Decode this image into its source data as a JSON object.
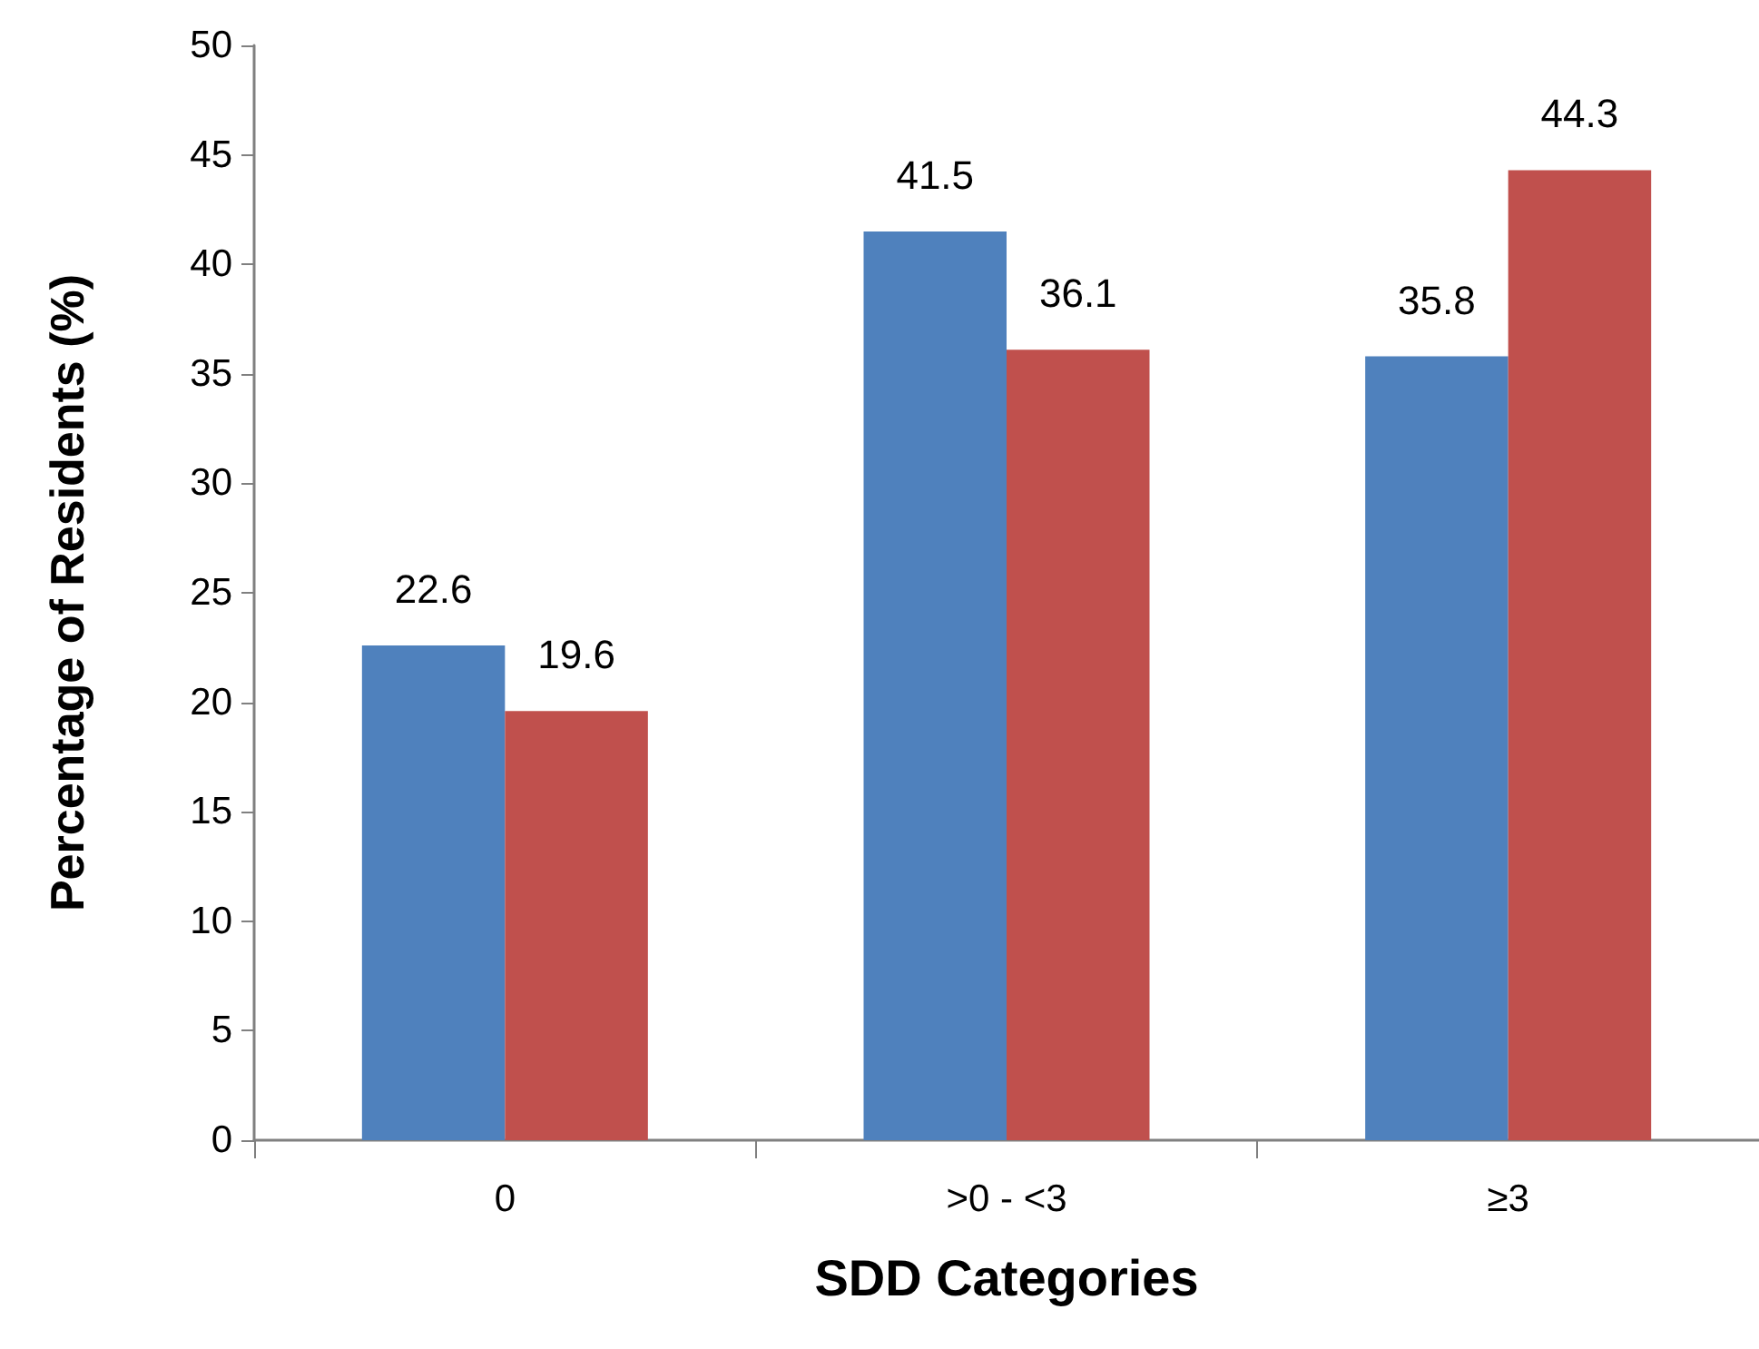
{
  "chart_data": {
    "type": "bar",
    "xlabel": "SDD Categories",
    "ylabel": "Percentage of Residents (%)",
    "categories": [
      "0",
      ">0 - <3",
      "≥3"
    ],
    "series": [
      {
        "color": "#4f81bd",
        "values": [
          22.6,
          41.5,
          35.8
        ]
      },
      {
        "color": "#c0504d",
        "values": [
          19.6,
          36.1,
          44.3
        ]
      }
    ],
    "ylim": [
      0,
      50
    ],
    "yticks": [
      0,
      5,
      10,
      15,
      20,
      25,
      30,
      35,
      40,
      45,
      50
    ],
    "data_labels": true
  }
}
